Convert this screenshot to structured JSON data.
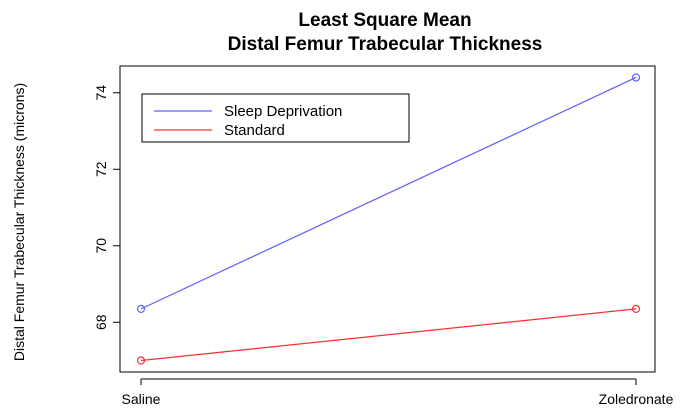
{
  "chart_data": {
    "type": "line",
    "title": "Least Square Mean",
    "subtitle": "Distal Femur Trabecular Thickness",
    "xlabel": "",
    "ylabel": "Distal Femur Trabecular Thickness (microns)",
    "categories": [
      "Saline",
      "Zoledronate"
    ],
    "ylim": [
      66.7,
      74.7
    ],
    "yticks": [
      {
        "value": 68,
        "label": "68"
      },
      {
        "value": 70,
        "label": "70"
      },
      {
        "value": 72,
        "label": "72"
      },
      {
        "value": 74,
        "label": "74"
      }
    ],
    "series": [
      {
        "name": "Sleep Deprivation",
        "color": "#6060ff",
        "values": [
          68.35,
          74.4
        ]
      },
      {
        "name": "Standard",
        "color": "#ff3030",
        "values": [
          67.0,
          68.35
        ]
      }
    ],
    "legend": "top-left",
    "grid": false,
    "markers": "open-circle"
  }
}
